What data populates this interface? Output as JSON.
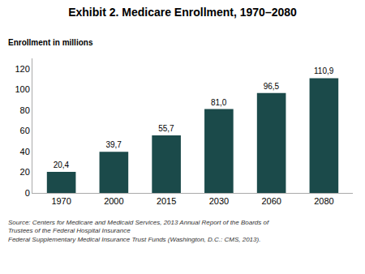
{
  "chart_data": {
    "type": "bar",
    "title": "Exhibit 2. Medicare Enrollment, 1970–2080",
    "ylabel": "Enrollment in millions",
    "annotations": [
      "Source: Centers for Medicare and Medicaid Services, 2013 Annual Report of the Boards of Trustees of the Federal Hospital Insurance\nFederal Supplementary Medical Insurance Trust Funds (Washington, D.C.: CMS, 2013)."
    ],
    "categories": [
      "1970",
      "2000",
      "2015",
      "2030",
      "2060",
      "2080"
    ],
    "values": [
      20.4,
      39.7,
      55.7,
      81.0,
      96.5,
      110.9
    ],
    "value_labels": [
      "20,4",
      "39,7",
      "55,7",
      "81,0",
      "96,5",
      "110,9"
    ],
    "data_labels": true,
    "color": "#1b4a4a",
    "ylim": [
      0,
      130
    ],
    "yticks": [
      0,
      20,
      40,
      60,
      80,
      100,
      120
    ],
    "grid": false
  }
}
